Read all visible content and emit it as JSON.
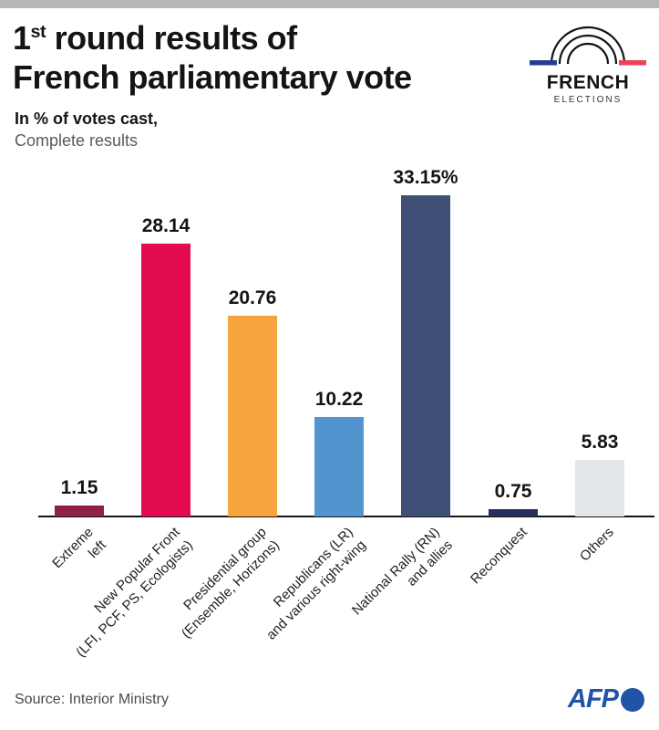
{
  "header": {
    "title_num": "1",
    "title_sup": "st",
    "title_rest": " round results of",
    "title_line2": "French parliamentary vote",
    "subtitle_bold": "In % of votes cast,",
    "subtitle_regular": "Complete results"
  },
  "logo": {
    "title": "FRENCH",
    "subtitle": "ELECTIONS",
    "flag_blue": "#233f94",
    "flag_red": "#ee4157",
    "arc_color": "#151515"
  },
  "chart_data": {
    "type": "bar",
    "title": "1st round results of French parliamentary vote",
    "subtitle": "In % of votes cast, complete results",
    "xlabel": "",
    "ylabel": "% of votes cast",
    "ylim": [
      0,
      35
    ],
    "grid": false,
    "legend": false,
    "categories": [
      "Extreme left",
      "New Popular Front (LFI, PCF, PS, Ecologists)",
      "Presidential group (Ensemble, Horizons)",
      "Republicans (LR) and various right-wing",
      "National Rally (RN) and allies",
      "Reconquest",
      "Others"
    ],
    "label_lines": [
      [
        "Extreme",
        "left"
      ],
      [
        "New Popular Front",
        "(LFI, PCF, PS, Ecologists)"
      ],
      [
        "Presidential group",
        "(Ensemble, Horizons)"
      ],
      [
        "Republicans (LR)",
        "and various right-wing"
      ],
      [
        "National Rally (RN)",
        "and allies"
      ],
      [
        "Reconquest"
      ],
      [
        "Others"
      ]
    ],
    "values": [
      1.15,
      28.14,
      20.76,
      10.22,
      33.15,
      0.75,
      5.83
    ],
    "value_labels": [
      "1.15",
      "28.14",
      "20.76",
      "10.22",
      "33.15%",
      "0.75",
      "5.83"
    ],
    "colors": [
      "#8e2144",
      "#e20c4f",
      "#f5a43e",
      "#5295ce",
      "#3f4f76",
      "#262f5e",
      "#e2e7e9"
    ]
  },
  "theme": {
    "top_band": "#b7b7b7",
    "axis_color": "#141414",
    "text_dark": "#141414",
    "text_gray": "#5a5a5a",
    "afp_blue": "#2154a6"
  },
  "footer": {
    "source": "Source: Interior Ministry",
    "afp_label": "AFP"
  }
}
